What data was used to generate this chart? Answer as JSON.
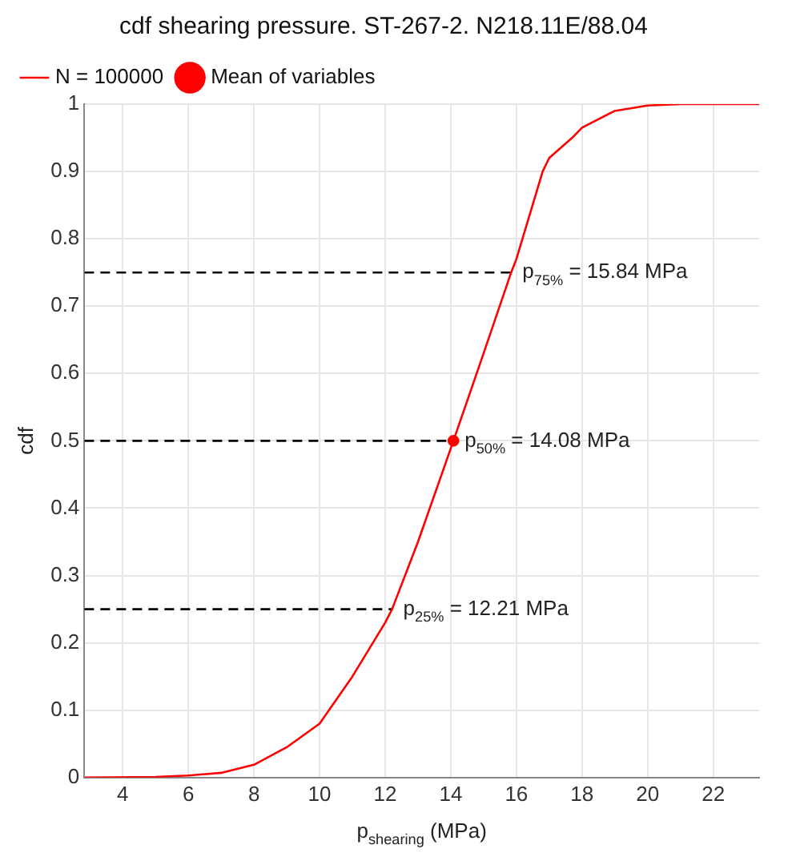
{
  "chart_data": {
    "type": "line",
    "title": "cdf shearing pressure. ST-267-2. N218.11E/88.04",
    "xlabel": "p$_{shearing}$ (MPa)",
    "ylabel": "cdf",
    "xlim": [
      2.83,
      23.4
    ],
    "xticks": [
      4,
      6,
      8,
      10,
      12,
      14,
      16,
      18,
      20,
      22
    ],
    "ylim": [
      0,
      1
    ],
    "yticks": [
      0,
      0.1,
      0.2,
      0.3,
      0.4,
      0.5,
      0.6,
      0.7,
      0.8,
      0.9,
      1
    ],
    "grid": true,
    "legend": "top left",
    "series": [
      {
        "name": "N = 100000",
        "color": "#ff0000",
        "marker": "none",
        "x": [
          2.83,
          5,
          6,
          7,
          8,
          9,
          10,
          11,
          12,
          12.21,
          13,
          14.08,
          15,
          15.84,
          16,
          16.8,
          17,
          17.7,
          18,
          19,
          20,
          21,
          22,
          23.4
        ],
        "values": [
          0,
          0.001,
          0.003,
          0.007,
          0.019,
          0.045,
          0.08,
          0.15,
          0.23,
          0.25,
          0.35,
          0.5,
          0.63,
          0.75,
          0.77,
          0.9,
          0.92,
          0.95,
          0.965,
          0.99,
          0.998,
          1,
          1,
          1
        ]
      },
      {
        "name": "Mean of variables",
        "type": "scatter",
        "color": "#ff0000",
        "marker": "circle",
        "x": [
          14.08
        ],
        "values": [
          0.5
        ]
      },
      {
        "type": "line",
        "color": "#000000",
        "line_style": "dashed",
        "marker": "none",
        "x": [
          2.83,
          12.21
        ],
        "values": [
          0.25,
          0.25
        ]
      },
      {
        "type": "line",
        "color": "#000000",
        "line_style": "dashed",
        "marker": "none",
        "x": [
          2.83,
          14.08
        ],
        "values": [
          0.5,
          0.5
        ]
      },
      {
        "type": "line",
        "color": "#000000",
        "line_style": "dashed",
        "marker": "none",
        "x": [
          2.83,
          15.84
        ],
        "values": [
          0.75,
          0.75
        ]
      }
    ],
    "annotations": [
      {
        "text": "p$_{25%}$ = 12.21 MPa",
        "x": 12.21,
        "y": 0.25
      },
      {
        "text": "p$_{50%}$ = 14.08 MPa",
        "x": 14.08,
        "y": 0.5
      },
      {
        "text": "p$_{75%}$ = 15.84 MPa",
        "x": 15.84,
        "y": 0.75
      }
    ]
  }
}
